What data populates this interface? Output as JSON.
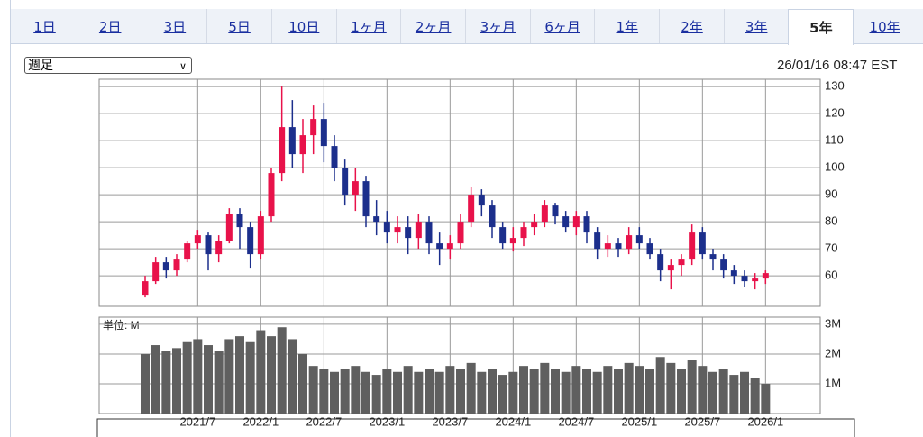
{
  "tabs": [
    "1日",
    "2日",
    "3日",
    "5日",
    "10日",
    "1ヶ月",
    "2ヶ月",
    "3ヶ月",
    "6ヶ月",
    "1年",
    "2年",
    "3年",
    "5年",
    "10年"
  ],
  "active_tab": 12,
  "select": "週足",
  "timestamp": "26/01/16 08:47 EST",
  "chart_data": {
    "type": "candlestick",
    "categories": [
      null,
      null,
      null,
      null,
      null,
      "2021/7",
      null,
      null,
      null,
      null,
      null,
      "2022/1",
      null,
      null,
      null,
      null,
      null,
      "2022/7",
      null,
      null,
      null,
      null,
      null,
      "2023/1",
      null,
      null,
      null,
      null,
      null,
      "2023/7",
      null,
      null,
      null,
      null,
      null,
      "2024/1",
      null,
      null,
      null,
      null,
      null,
      "2024/7",
      null,
      null,
      null,
      null,
      null,
      "2025/1",
      null,
      null,
      null,
      null,
      null,
      "2025/7",
      null,
      null,
      null,
      null,
      null,
      "2026/1"
    ],
    "open": [
      53,
      58,
      65,
      62,
      66,
      72,
      75,
      68,
      73,
      83,
      78,
      68,
      82,
      98,
      115,
      105,
      112,
      118,
      108,
      100,
      90,
      95,
      82,
      80,
      76,
      78,
      74,
      80,
      72,
      70,
      72,
      80,
      90,
      86,
      78,
      72,
      74,
      78,
      80,
      86,
      82,
      78,
      82,
      76,
      70,
      72,
      70,
      75,
      72,
      68,
      62,
      64,
      66,
      76,
      68,
      66,
      62,
      60,
      58,
      59
    ],
    "high": [
      60,
      67,
      67,
      68,
      73,
      77,
      76,
      75,
      85,
      85,
      80,
      84,
      100,
      130,
      125,
      118,
      123,
      124,
      112,
      103,
      100,
      97,
      88,
      84,
      82,
      82,
      83,
      82,
      76,
      75,
      83,
      93,
      92,
      88,
      80,
      78,
      80,
      83,
      88,
      87,
      84,
      84,
      84,
      78,
      75,
      74,
      78,
      78,
      74,
      70,
      66,
      68,
      79,
      78,
      70,
      68,
      64,
      62,
      61,
      62
    ],
    "low": [
      52,
      57,
      59,
      60,
      65,
      70,
      62,
      65,
      72,
      70,
      63,
      66,
      80,
      95,
      100,
      98,
      105,
      102,
      95,
      86,
      84,
      78,
      75,
      72,
      72,
      68,
      70,
      68,
      64,
      66,
      70,
      78,
      82,
      74,
      70,
      69,
      71,
      75,
      78,
      79,
      76,
      75,
      72,
      66,
      67,
      67,
      68,
      70,
      66,
      58,
      55,
      60,
      64,
      66,
      62,
      59,
      57,
      56,
      55,
      57
    ],
    "close": [
      58,
      65,
      62,
      66,
      72,
      75,
      68,
      73,
      83,
      78,
      68,
      82,
      98,
      115,
      105,
      112,
      118,
      108,
      100,
      90,
      95,
      82,
      80,
      76,
      78,
      74,
      80,
      72,
      70,
      72,
      80,
      90,
      86,
      78,
      72,
      74,
      78,
      80,
      86,
      82,
      78,
      82,
      76,
      70,
      72,
      70,
      75,
      72,
      68,
      62,
      64,
      66,
      76,
      68,
      66,
      62,
      60,
      58,
      59,
      61
    ],
    "up_color": "#e8124a",
    "down_color": "#1c2f8c",
    "ylim": [
      48.7,
      132.7
    ],
    "yticks": [
      60,
      70,
      80,
      90,
      100,
      110,
      120,
      130
    ],
    "grid": true,
    "volume": {
      "unit_label": "単位: M",
      "color": "#5f5f5f",
      "values": [
        2.0,
        2.3,
        2.1,
        2.2,
        2.4,
        2.5,
        2.3,
        2.1,
        2.5,
        2.6,
        2.4,
        2.8,
        2.6,
        2.9,
        2.5,
        2.0,
        1.6,
        1.5,
        1.4,
        1.5,
        1.6,
        1.4,
        1.3,
        1.5,
        1.4,
        1.6,
        1.4,
        1.5,
        1.4,
        1.6,
        1.5,
        1.7,
        1.4,
        1.5,
        1.3,
        1.4,
        1.6,
        1.5,
        1.7,
        1.5,
        1.4,
        1.6,
        1.5,
        1.4,
        1.6,
        1.5,
        1.7,
        1.6,
        1.5,
        1.9,
        1.7,
        1.5,
        1.8,
        1.6,
        1.4,
        1.5,
        1.3,
        1.4,
        1.2,
        1.0
      ],
      "ylim": [
        0,
        3.24
      ],
      "yticks": [
        {
          "value": 1,
          "label": "1M"
        },
        {
          "value": 2,
          "label": "2M"
        },
        {
          "value": 3,
          "label": "3M"
        }
      ]
    }
  }
}
